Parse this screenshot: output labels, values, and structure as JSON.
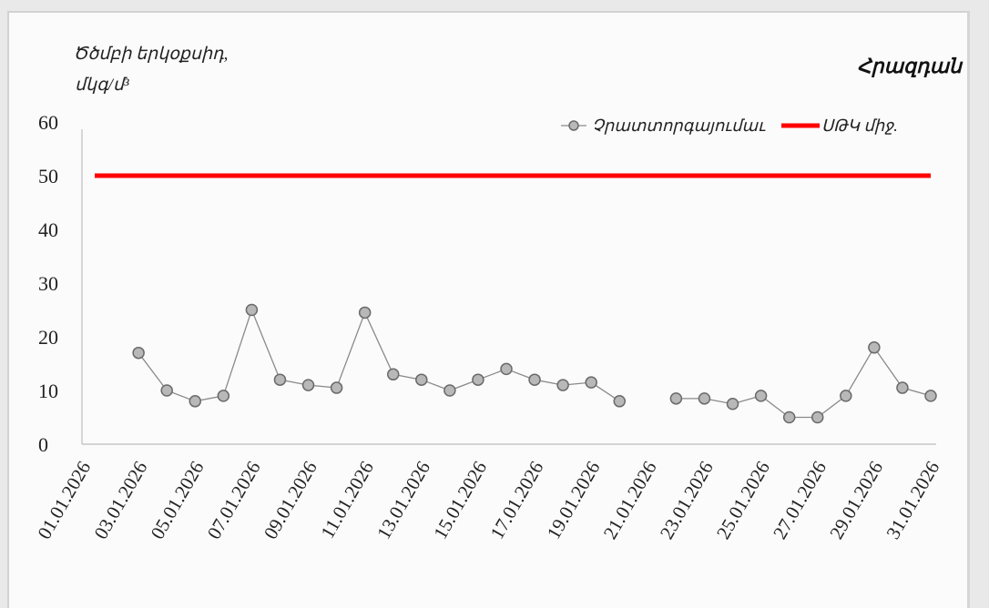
{
  "chart_data": {
    "type": "line",
    "title": "Հրազդան",
    "ylabel_lines": [
      "Ծծմբի երկօքսիդ,",
      "մկգ/մ³"
    ],
    "ylim": [
      0,
      60
    ],
    "yticks": [
      0,
      10,
      20,
      30,
      40,
      50,
      60
    ],
    "x": [
      "01.01.2026",
      "02.01.2026",
      "03.01.2026",
      "04.01.2026",
      "05.01.2026",
      "06.01.2026",
      "07.01.2026",
      "08.01.2026",
      "09.01.2026",
      "10.01.2026",
      "11.01.2026",
      "12.01.2026",
      "13.01.2026",
      "14.01.2026",
      "15.01.2026",
      "16.01.2026",
      "17.01.2026",
      "18.01.2026",
      "19.01.2026",
      "20.01.2026",
      "21.01.2026",
      "22.01.2026",
      "23.01.2026",
      "24.01.2026",
      "25.01.2026",
      "26.01.2026",
      "27.01.2026",
      "28.01.2026",
      "29.01.2026",
      "30.01.2026",
      "31.01.2026"
    ],
    "xticks": [
      "01.01.2026",
      "03.01.2026",
      "05.01.2026",
      "07.01.2026",
      "09.01.2026",
      "11.01.2026",
      "13.01.2026",
      "15.01.2026",
      "17.01.2026",
      "19.01.2026",
      "21.01.2026",
      "23.01.2026",
      "25.01.2026",
      "27.01.2026",
      "29.01.2026",
      "31.01.2026"
    ],
    "series": [
      {
        "name": "Չրատտորգայումաւ",
        "color": "#7a7a7a",
        "marker": "circle",
        "values": [
          null,
          null,
          17,
          10,
          8,
          9,
          25,
          12,
          11,
          10.5,
          24.5,
          13,
          12,
          10,
          12,
          14,
          12,
          11,
          11.5,
          8,
          null,
          8.5,
          8.5,
          7.5,
          9,
          5,
          5,
          9,
          18,
          10.5,
          9
        ]
      },
      {
        "name": "ՍԹԿ միջ.",
        "color": "#ff0000",
        "type": "hline",
        "value": 50
      }
    ],
    "legend_position": "top-right",
    "grid": false
  }
}
